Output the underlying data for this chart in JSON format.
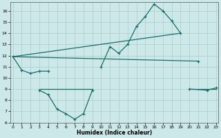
{
  "xlabel": "Humidex (Indice chaleur)",
  "bg_color": "#cce8e8",
  "line_color": "#1a6b6b",
  "series_main": {
    "x": [
      0,
      1,
      2,
      3,
      4,
      10,
      11,
      12,
      13,
      14,
      15,
      15,
      16,
      17,
      18,
      19,
      21
    ],
    "y": [
      11.9,
      10.7,
      10.4,
      10.6,
      10.6,
      11.0,
      12.8,
      12.2,
      13.0,
      14.6,
      15.5,
      15.5,
      16.6,
      16.0,
      15.1,
      14.0,
      11.5
    ]
  },
  "series_main_segments": [
    {
      "x": [
        0,
        1,
        2,
        3,
        4
      ],
      "y": [
        11.9,
        10.7,
        10.4,
        10.6,
        10.6
      ]
    },
    {
      "x": [
        10,
        11,
        12,
        13,
        14,
        15,
        16,
        17,
        18,
        19
      ],
      "y": [
        11.0,
        12.8,
        12.2,
        13.0,
        14.6,
        15.5,
        16.6,
        16.0,
        15.1,
        14.0
      ]
    },
    {
      "x": [
        21
      ],
      "y": [
        11.5
      ]
    }
  ],
  "series_low_segments": [
    {
      "x": [
        3,
        4,
        5,
        6,
        7,
        8,
        9
      ],
      "y": [
        8.9,
        8.5,
        7.2,
        6.8,
        6.3,
        6.8,
        8.9
      ]
    },
    {
      "x": [
        20,
        22,
        23
      ],
      "y": [
        9.0,
        8.9,
        9.1
      ]
    }
  ],
  "line_upper": {
    "x": [
      0,
      19
    ],
    "y": [
      11.9,
      14.0
    ]
  },
  "line_lower": {
    "x": [
      0,
      21
    ],
    "y": [
      11.9,
      11.5
    ]
  },
  "flat_low1": {
    "x": [
      3,
      9
    ],
    "y": [
      9.0,
      9.0
    ]
  },
  "flat_low2": {
    "x": [
      20,
      23
    ],
    "y": [
      9.0,
      9.0
    ]
  },
  "xlim": [
    -0.3,
    23.3
  ],
  "ylim": [
    6.0,
    16.8
  ],
  "yticks": [
    6,
    7,
    8,
    9,
    10,
    11,
    12,
    13,
    14,
    15,
    16
  ],
  "xticks": [
    0,
    1,
    2,
    3,
    4,
    5,
    6,
    7,
    8,
    9,
    10,
    11,
    12,
    13,
    14,
    15,
    16,
    17,
    18,
    19,
    20,
    21,
    22,
    23
  ]
}
